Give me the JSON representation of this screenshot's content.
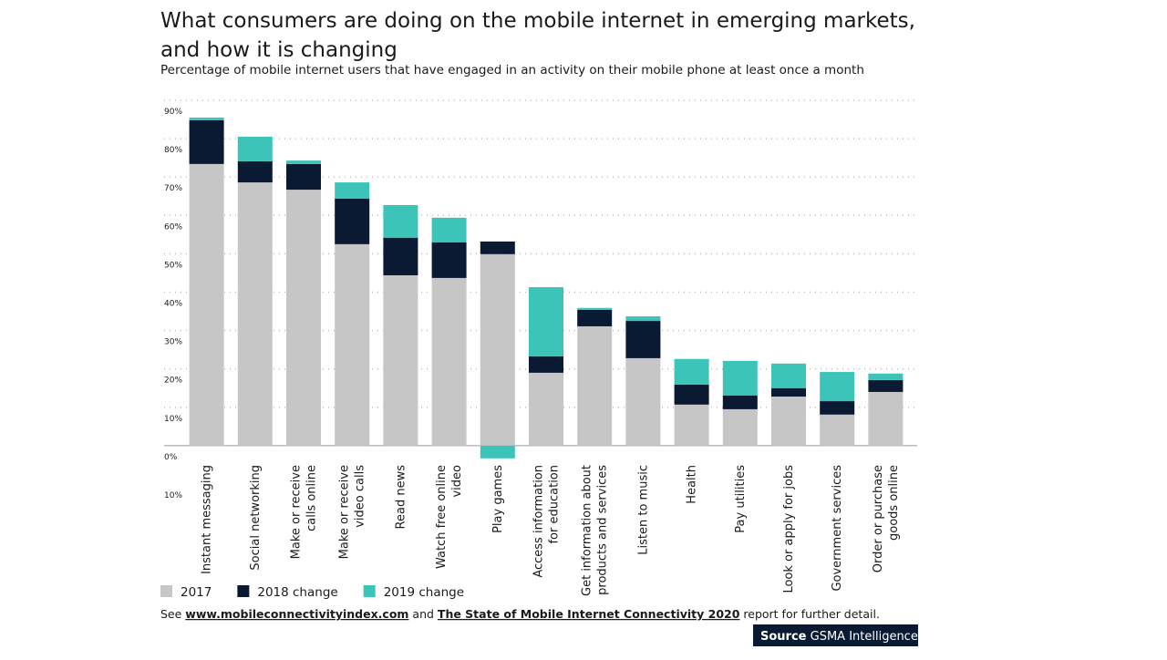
{
  "chart_data": {
    "type": "stacked_bar",
    "title": [
      "What consumers are doing on the mobile internet in emerging markets,",
      "and how it is changing"
    ],
    "subtitle": "Percentage of mobile internet users that have engaged in an activity on their mobile phone at least once a month",
    "categories": [
      "Instant messaging",
      "Social networking",
      "Make or receive\ncalls online",
      "Make or receive\nvideo calls",
      "Read news",
      "Watch free online\nvideo",
      "Play games",
      "Access information\nfor education",
      "Get information about\nproducts and services",
      "Listen to music",
      "Health",
      "Pay utilities",
      "Look or apply for jobs",
      "Government services",
      "Order or purchase\ngoods online"
    ],
    "series": [
      {
        "name": "2017",
        "color": "#c6c6c6",
        "values": [
          73.4,
          68.6,
          66.7,
          52.5,
          44.4,
          43.7,
          49.9,
          19.0,
          31.1,
          22.8,
          10.7,
          9.5,
          12.8,
          8.1,
          14.0
        ]
      },
      {
        "name": "2018 change",
        "color": "#0a1a33",
        "values": [
          11.4,
          5.5,
          6.7,
          11.9,
          9.8,
          9.3,
          3.3,
          4.3,
          4.3,
          9.7,
          5.2,
          3.6,
          2.2,
          3.5,
          3.1
        ]
      },
      {
        "name": "2019 change",
        "color": "#3cc4b8",
        "values": [
          0.7,
          6.4,
          0.9,
          4.2,
          8.5,
          6.4,
          -3.3,
          18.0,
          0.5,
          1.2,
          6.7,
          9.0,
          6.4,
          7.6,
          1.7
        ]
      }
    ],
    "ylim": [
      -10,
      90
    ],
    "yticks": [
      {
        "value": -10,
        "label": "10%"
      },
      {
        "value": 0,
        "label": "0%"
      },
      {
        "value": 10,
        "label": "10%"
      },
      {
        "value": 20,
        "label": "20%"
      },
      {
        "value": 30,
        "label": "30%"
      },
      {
        "value": 40,
        "label": "40%"
      },
      {
        "value": 50,
        "label": "50%"
      },
      {
        "value": 60,
        "label": "60%"
      },
      {
        "value": 70,
        "label": "70%"
      },
      {
        "value": 80,
        "label": "80%"
      },
      {
        "value": 90,
        "label": "90%"
      }
    ],
    "grid": true,
    "footnote": [
      "See ",
      "www.mobileconnectivityindex.com",
      " and ",
      "The State of Mobile Internet Connectivity 2020",
      " report for further detail."
    ],
    "source": [
      "Source",
      "GSMA Intelligence"
    ]
  }
}
